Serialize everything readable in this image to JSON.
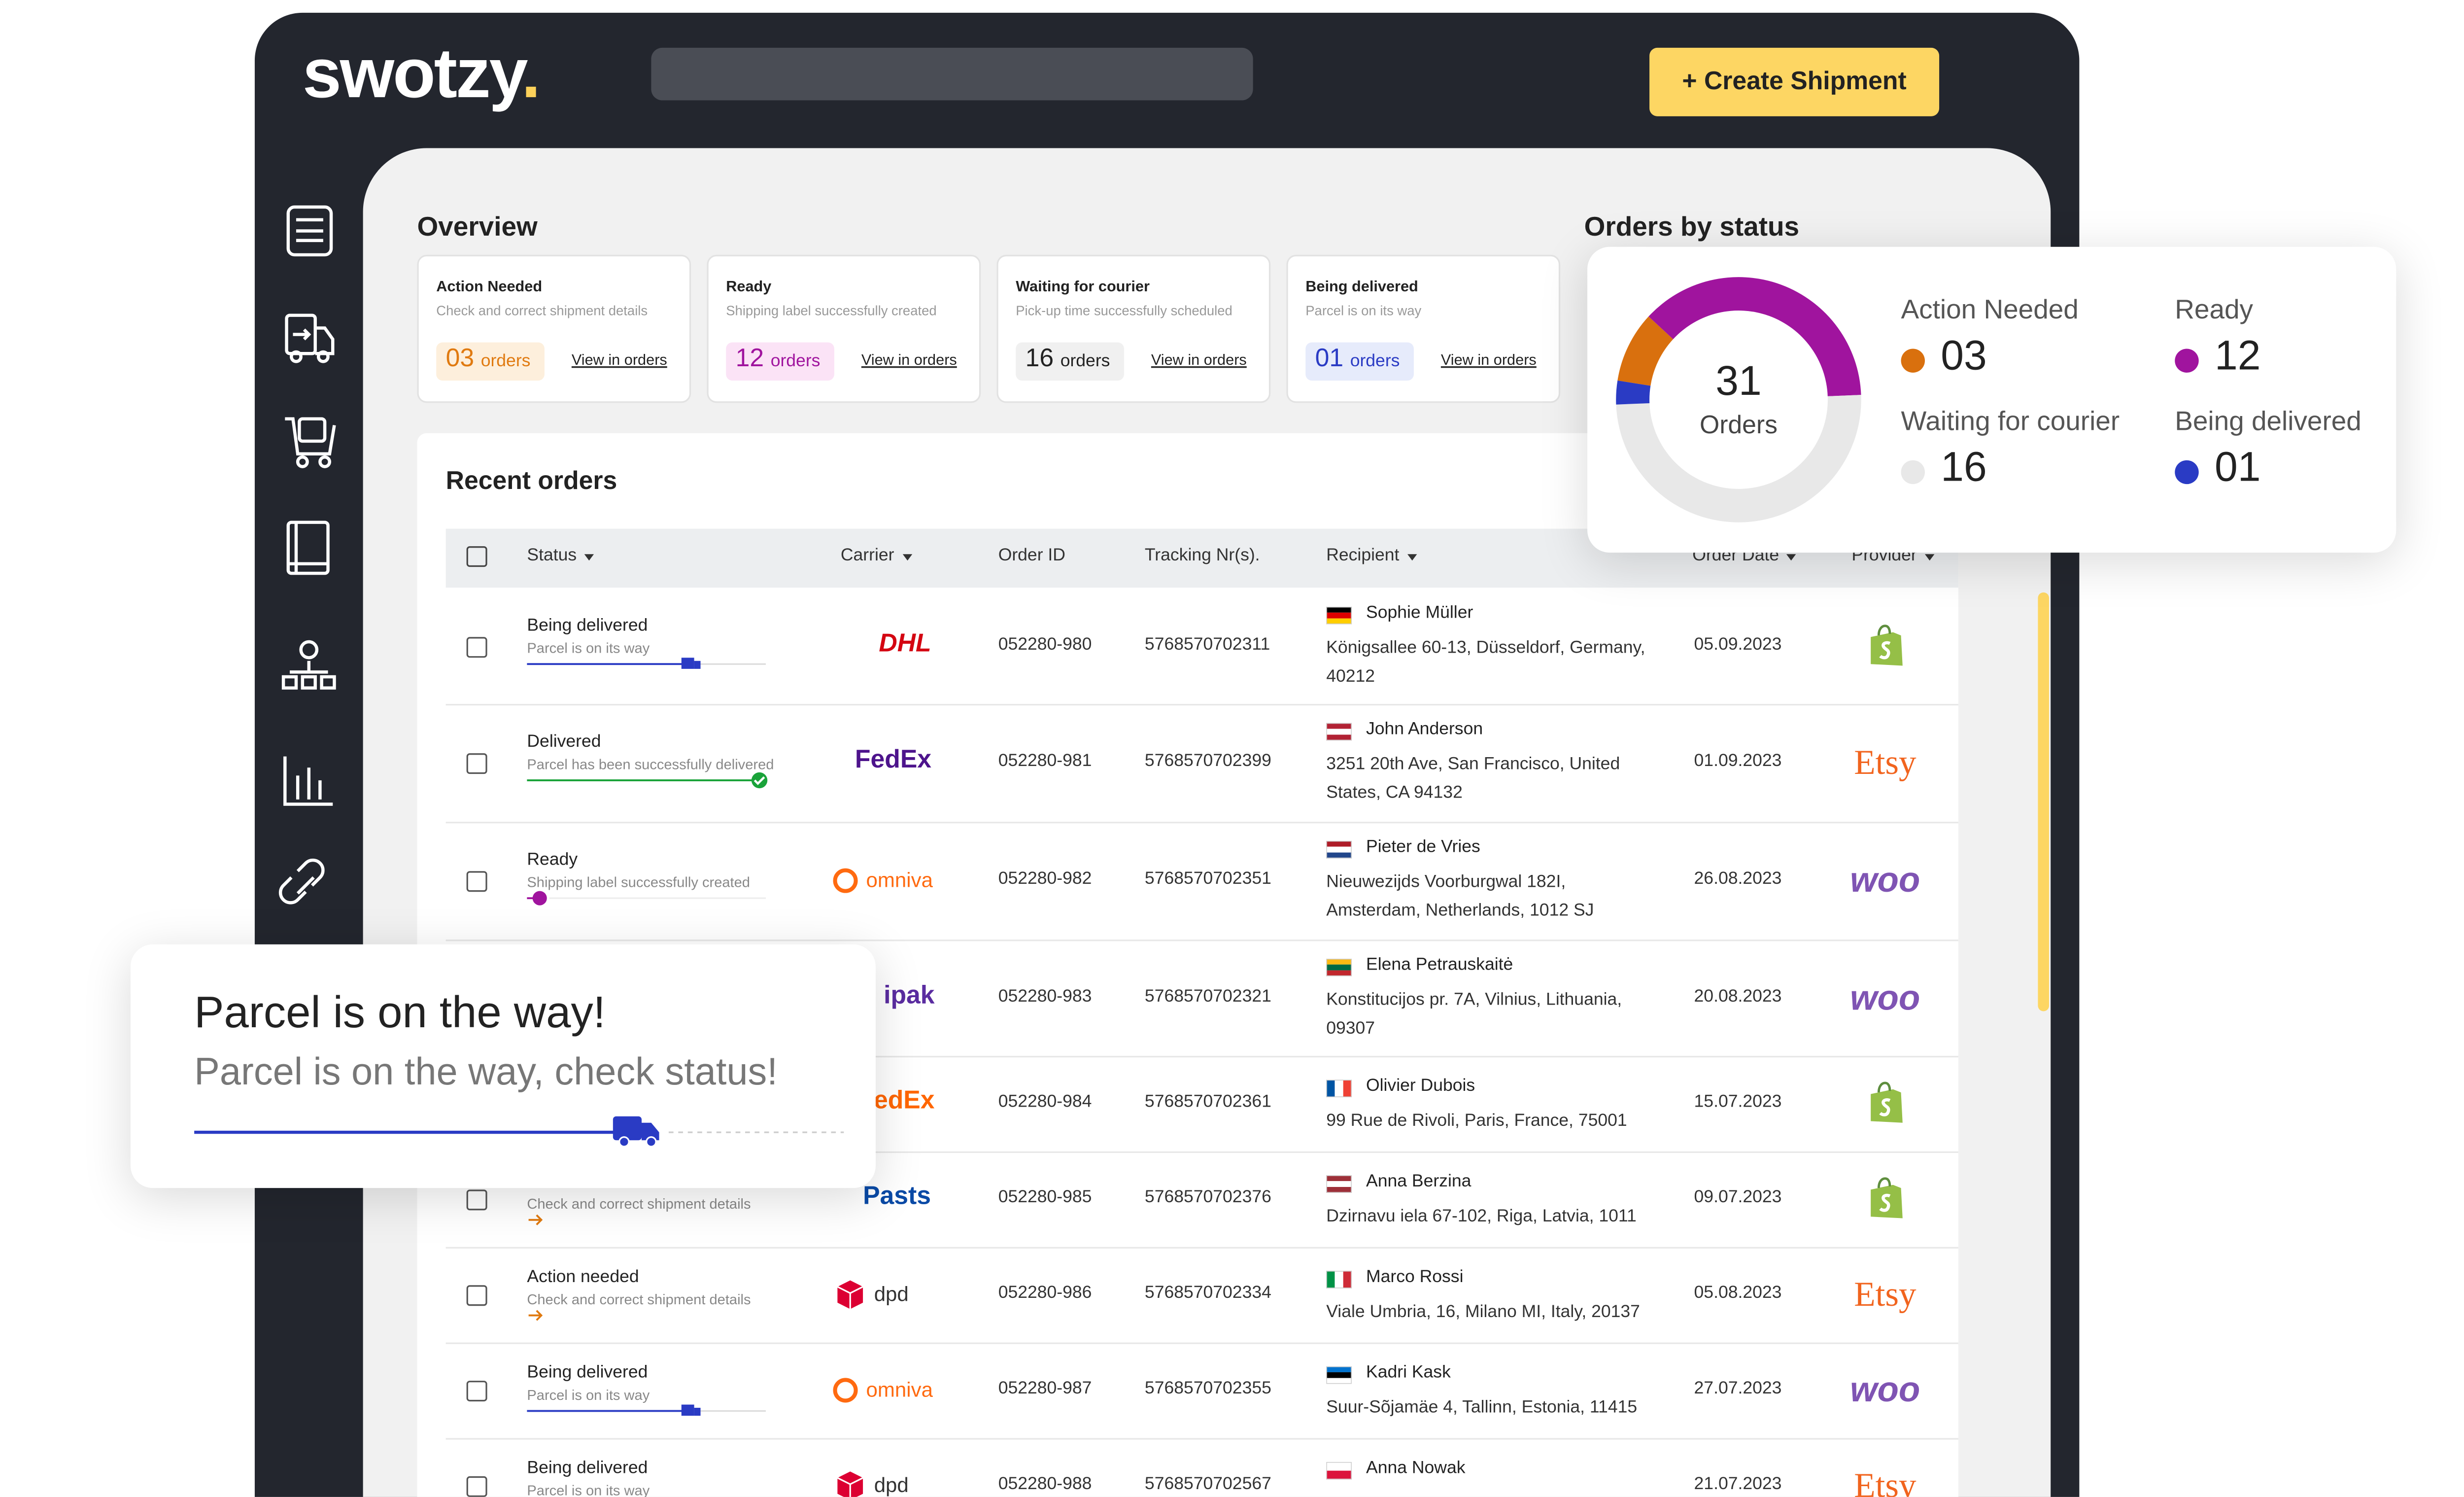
{
  "header": {
    "logo": "swotzy",
    "logo_dot": ".",
    "create_button": "+ Create Shipment"
  },
  "overview": {
    "title": "Overview",
    "cards": [
      {
        "title": "Action Needed",
        "subtitle": "Check and correct shipment details",
        "count": "03",
        "unit": "orders",
        "link": "View in orders",
        "color": "#e07a10",
        "bg": "#fdefdc"
      },
      {
        "title": "Ready",
        "subtitle": "Shipping label successfully created",
        "count": "12",
        "unit": "orders",
        "link": "View in orders",
        "color": "#a0149e",
        "bg": "#fbe3f6"
      },
      {
        "title": "Waiting for courier",
        "subtitle": "Pick-up time successfully scheduled",
        "count": "16",
        "unit": "orders",
        "link": "View in orders",
        "color": "#222222",
        "bg": "#f0f0f0"
      },
      {
        "title": "Being delivered",
        "subtitle": "Parcel is on its way",
        "count": "01",
        "unit": "orders",
        "link": "View in orders",
        "color": "#2a3bc4",
        "bg": "#e6ebfb"
      }
    ]
  },
  "orders_by_status": {
    "title": "Orders by status",
    "total": "31",
    "total_label": "Orders",
    "items": [
      {
        "label": "Action Needed",
        "value": 3,
        "value_label": "03",
        "color": "#d9700e"
      },
      {
        "label": "Ready",
        "value": 12,
        "value_label": "12",
        "color": "#a0149e"
      },
      {
        "label": "Waiting for courier",
        "value": 16,
        "value_label": "16",
        "color": "#e8e8e8"
      },
      {
        "label": "Being delivered",
        "value": 1,
        "value_label": "01",
        "color": "#2a3bc4"
      }
    ]
  },
  "recent_orders": {
    "title": "Recent orders",
    "columns": [
      "Status",
      "Carrier",
      "Order ID",
      "Tracking Nr(s).",
      "Recipient",
      "Order Date",
      "Provider"
    ],
    "sortable": [
      true,
      true,
      false,
      false,
      true,
      true,
      true
    ],
    "rows": [
      {
        "status": "Being delivered",
        "status_note": "Parcel is on its way",
        "indicator": "truck",
        "carrier": "DHL",
        "carrier_color": "#d40511",
        "carrier_icon": "none",
        "order_id": "052280-980",
        "tracking": "5768570702311",
        "flag": [
          "#000000",
          "#dd0000",
          "#ffce00"
        ],
        "recipient": "Sophie Müller",
        "address": "Königsallee 60-13, Düsseldorf, Germany, 40212",
        "date": "05.09.2023",
        "provider_icon": "shopify"
      },
      {
        "status": "Delivered",
        "status_note": "Parcel has been successfully delivered",
        "indicator": "check",
        "carrier": "FedEx",
        "carrier_color": "#4d148c",
        "carrier_icon": "none",
        "order_id": "052280-981",
        "tracking": "5768570702399",
        "flag": [
          "#b22234",
          "#ffffff",
          "#b22234"
        ],
        "recipient": "John Anderson",
        "address": "3251 20th Ave, San Francisco, United States, CA 94132",
        "date": "01.09.2023",
        "provider": "Etsy",
        "provider_color": "#f1641e"
      },
      {
        "status": "Ready",
        "status_note": "Shipping label successfully created",
        "indicator": "dot",
        "carrier": "omniva",
        "carrier_color": "#ff6a10",
        "carrier_icon": "ring",
        "order_id": "052280-982",
        "tracking": "5768570702351",
        "flag": [
          "#ae1c28",
          "#ffffff",
          "#21468b"
        ],
        "recipient": "Pieter de Vries",
        "address": "Nieuwezijds Voorburgwal 182I, Amsterdam, Netherlands, 1012 SJ",
        "date": "26.08.2023",
        "provider": "woo",
        "provider_color": "#7f54b3"
      },
      {
        "carrier": "ipak",
        "carrier_color": "#5a2ca0",
        "carrier_icon": "none",
        "order_id": "052280-983",
        "tracking": "5768570702321",
        "flag": [
          "#fdb913",
          "#006a44",
          "#c1272d"
        ],
        "recipient": "Elena Petrauskaitė",
        "address": "Konstitucijos pr. 7A, Vilnius, Lithuania, 09307",
        "date": "20.08.2023",
        "provider": "woo",
        "provider_color": "#7f54b3"
      },
      {
        "carrier": "FedEx",
        "carrier_color": "#ff6600",
        "carrier_icon": "none",
        "order_id": "052280-984",
        "tracking": "5768570702361",
        "flag": [
          "#0055a4",
          "#ffffff",
          "#ef4135"
        ],
        "flag_vertical": true,
        "recipient": "Olivier Dubois",
        "address": "99 Rue de Rivoli, Paris, France, 75001",
        "date": "15.07.2023",
        "provider_icon": "shopify"
      },
      {
        "status_note": "Check and correct shipment details",
        "indicator": "arrow",
        "carrier": "Pasts",
        "carrier_color": "#0a4aa6",
        "carrier_icon": "none",
        "order_id": "052280-985",
        "tracking": "5768570702376",
        "flag": [
          "#9e3039",
          "#ffffff",
          "#9e3039"
        ],
        "recipient": "Anna Berzina",
        "address": "Dzirnavu iela 67-102, Riga, Latvia, 1011",
        "date": "09.07.2023",
        "provider_icon": "shopify"
      },
      {
        "status": "Action needed",
        "status_note": "Check and correct shipment details",
        "indicator": "arrow",
        "carrier": "dpd",
        "carrier_color": "#333333",
        "carrier_icon": "cube",
        "order_id": "052280-986",
        "tracking": "5768570702334",
        "flag": [
          "#009246",
          "#ffffff",
          "#ce2b37"
        ],
        "flag_vertical": true,
        "recipient": "Marco Rossi",
        "address": "Viale Umbria, 16, Milano MI, Italy, 20137",
        "date": "05.08.2023",
        "provider": "Etsy",
        "provider_color": "#f1641e"
      },
      {
        "status": "Being delivered",
        "status_note": "Parcel is on its way",
        "indicator": "truck",
        "carrier": "omniva",
        "carrier_color": "#ff6a10",
        "carrier_icon": "ring",
        "order_id": "052280-987",
        "tracking": "5768570702355",
        "flag": [
          "#0072ce",
          "#000000",
          "#ffffff"
        ],
        "recipient": "Kadri Kask",
        "address": "Suur-Sõjamäe 4, Tallinn, Estonia, 11415",
        "date": "27.07.2023",
        "provider": "woo",
        "provider_color": "#7f54b3"
      },
      {
        "status": "Being delivered",
        "status_note": "Parcel is on its way",
        "indicator": "truck",
        "carrier": "dpd",
        "carrier_color": "#333333",
        "carrier_icon": "cube",
        "order_id": "052280-988",
        "tracking": "5768570702567",
        "flag": [
          "#ffffff",
          "#dc143c"
        ],
        "recipient": "Anna Nowak",
        "date": "21.07.2023",
        "provider": "Etsy",
        "provider_color": "#f1641e"
      }
    ]
  },
  "notification": {
    "title": "Parcel is on the way!",
    "message": "Parcel is on the way, check status!"
  }
}
